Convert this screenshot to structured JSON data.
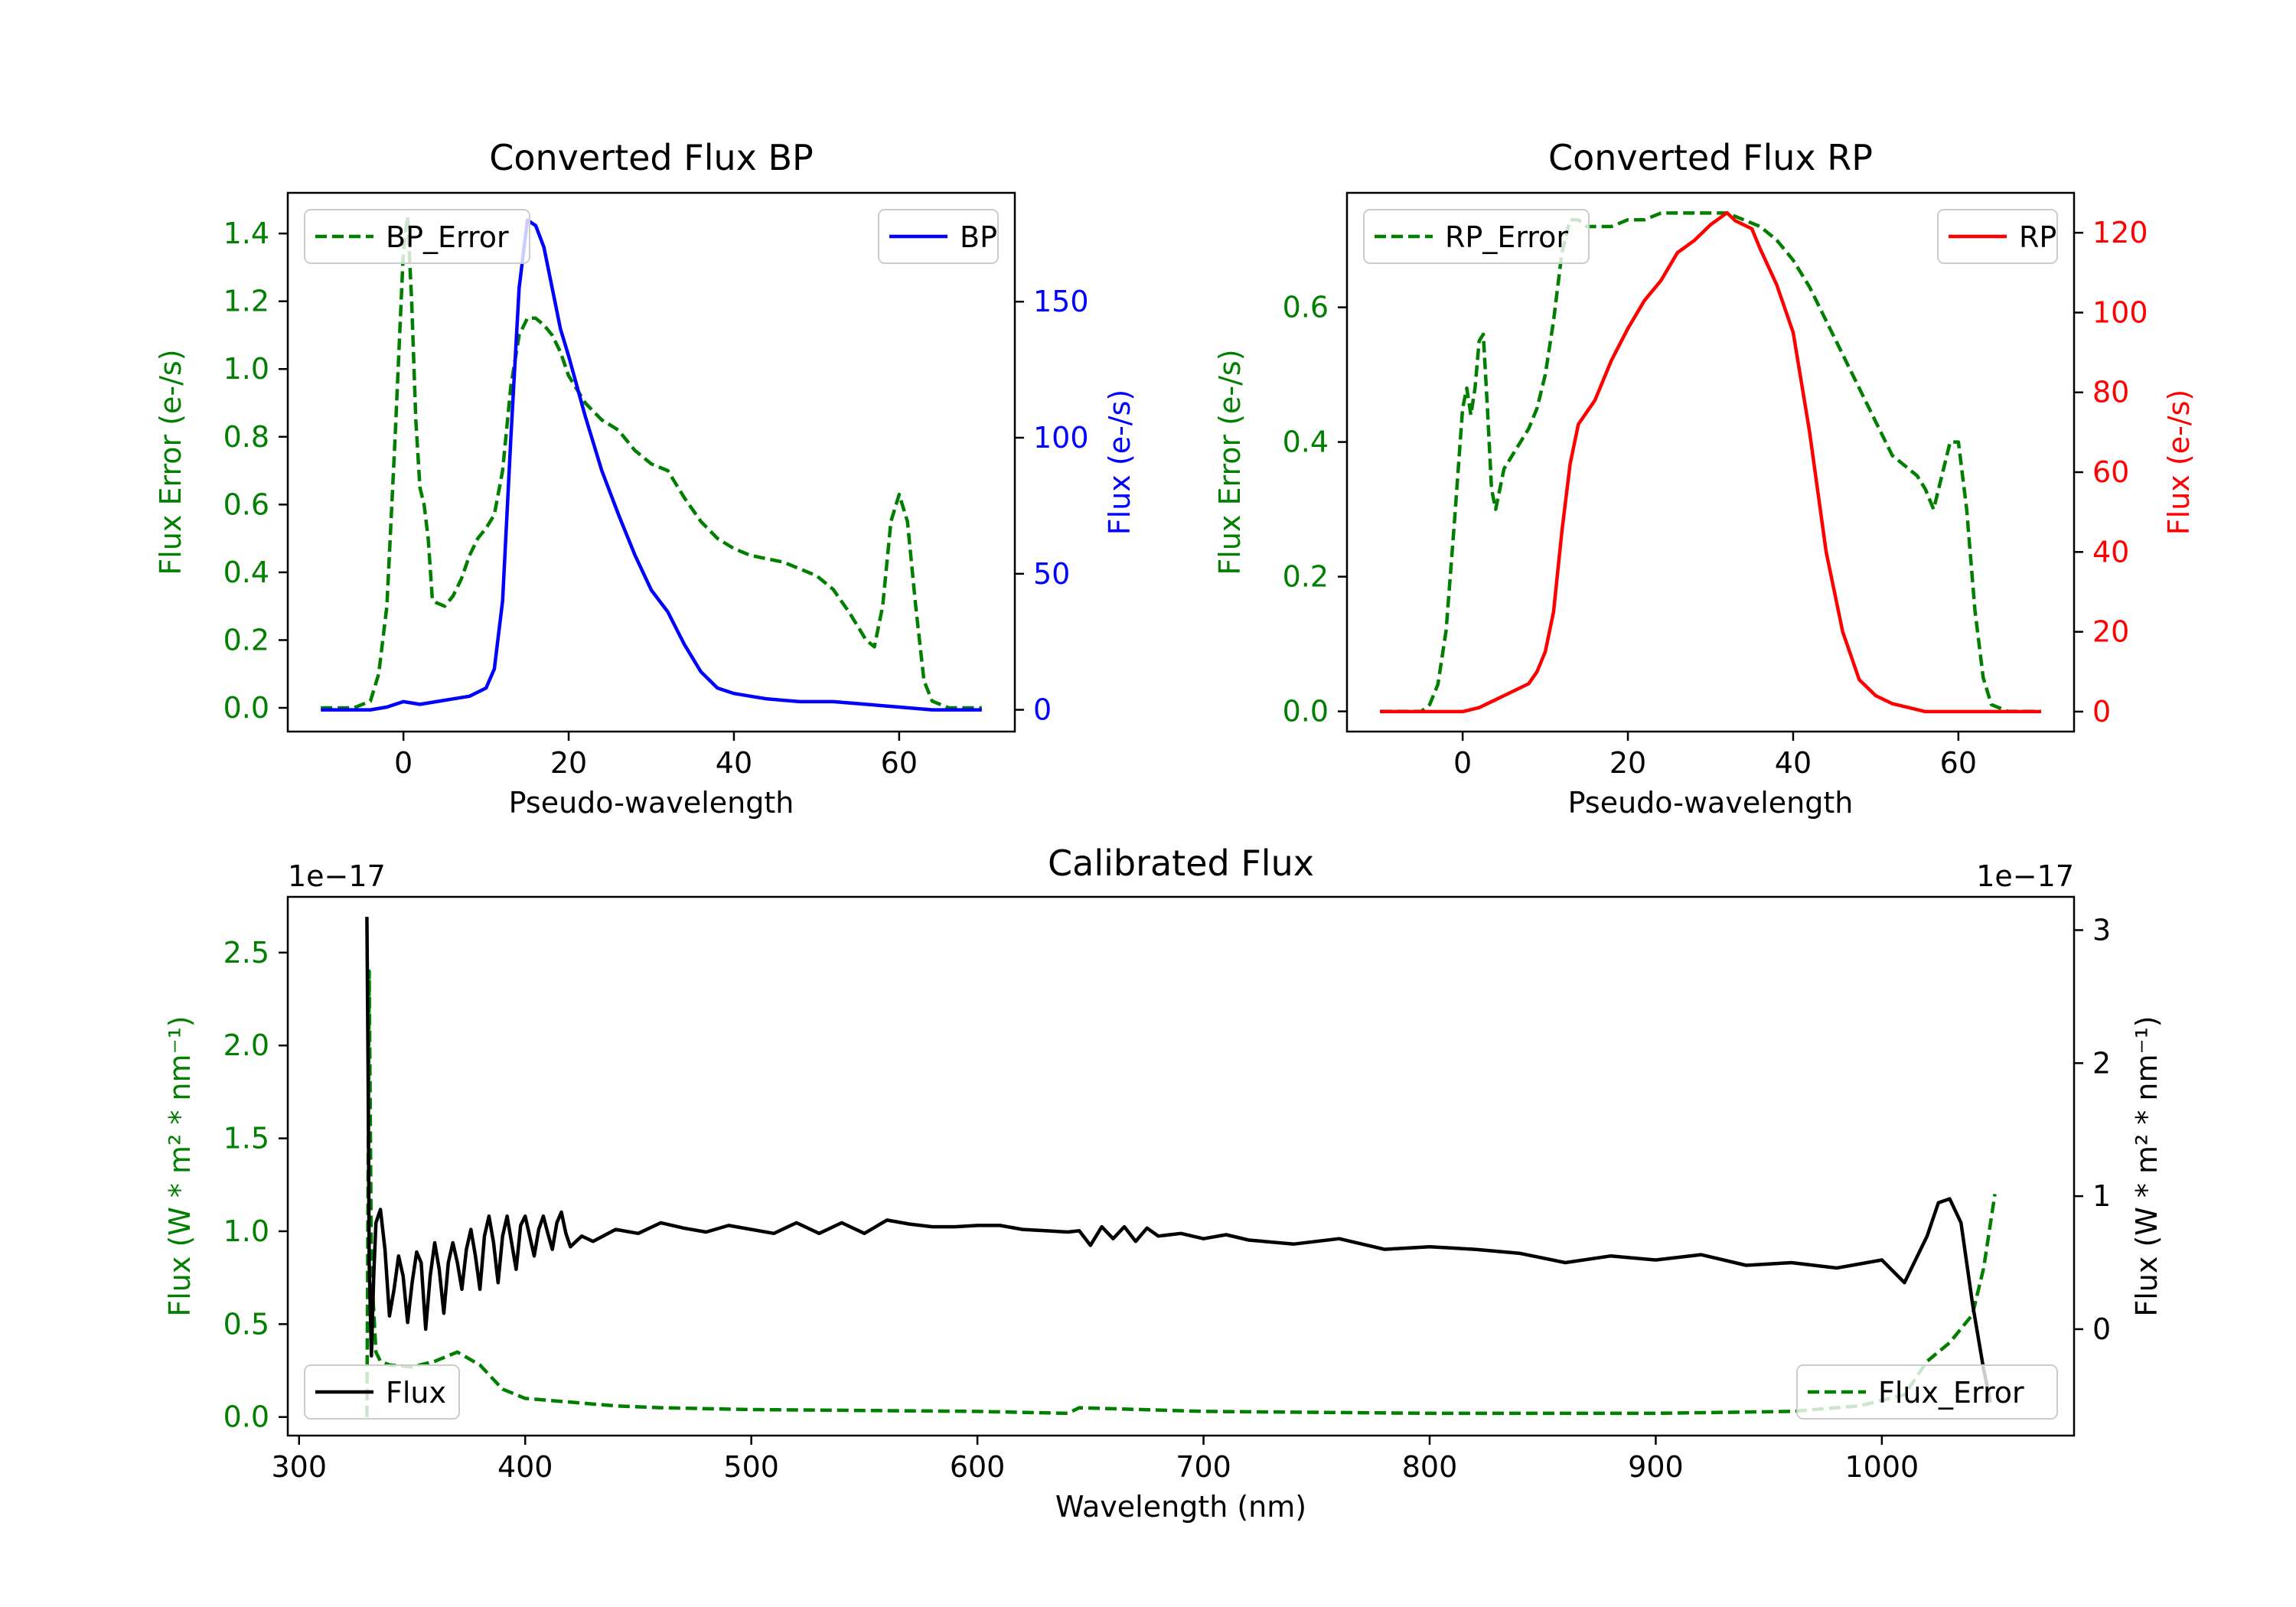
{
  "colors": {
    "green": "#007f00",
    "blue": "#0000ff",
    "red": "#ff0000",
    "black": "#000000"
  },
  "chart_data": [
    {
      "type": "line",
      "title": "Converted Flux BP",
      "xlabel": "Pseudo-wavelength",
      "xlim": [
        -14,
        74
      ],
      "xticks": [
        0,
        20,
        40,
        60
      ],
      "left_axis": {
        "label": "Flux Error (e-/s)",
        "color": "green",
        "ylim": [
          -0.07,
          1.52
        ],
        "ticks": [
          0.0,
          0.2,
          0.4,
          0.6,
          0.8,
          1.0,
          1.2,
          1.4
        ],
        "decimals": 1
      },
      "right_axis": {
        "label": "Flux (e-/s)",
        "color": "blue",
        "ylim": [
          -8,
          190
        ],
        "ticks": [
          0,
          50,
          100,
          150
        ],
        "decimals": 0
      },
      "series": [
        {
          "name": "BP_Error",
          "axis": "left",
          "style": "dashed",
          "color": "green",
          "x": [
            -10,
            -6,
            -4,
            -3,
            -2,
            -1,
            0,
            0.5,
            1,
            1.5,
            2,
            2.5,
            3,
            3.5,
            4,
            5,
            6,
            7,
            8,
            9,
            10,
            11,
            12,
            13,
            14,
            15,
            16,
            17,
            18,
            19,
            20,
            22,
            24,
            26,
            28,
            30,
            32,
            34,
            36,
            38,
            40,
            42,
            44,
            46,
            48,
            50,
            52,
            54,
            55,
            56,
            57,
            58,
            59,
            60,
            61,
            62,
            63,
            64,
            66,
            70
          ],
          "y": [
            0.0,
            0.0,
            0.02,
            0.1,
            0.3,
            0.8,
            1.35,
            1.45,
            1.2,
            0.85,
            0.65,
            0.6,
            0.5,
            0.32,
            0.31,
            0.3,
            0.33,
            0.38,
            0.45,
            0.5,
            0.53,
            0.57,
            0.7,
            0.95,
            1.1,
            1.15,
            1.15,
            1.13,
            1.1,
            1.05,
            0.98,
            0.9,
            0.85,
            0.82,
            0.76,
            0.72,
            0.7,
            0.62,
            0.55,
            0.5,
            0.47,
            0.45,
            0.44,
            0.43,
            0.41,
            0.39,
            0.35,
            0.28,
            0.24,
            0.2,
            0.18,
            0.3,
            0.55,
            0.63,
            0.55,
            0.3,
            0.08,
            0.02,
            0.0,
            0.0
          ]
        },
        {
          "name": "BP",
          "axis": "right",
          "style": "solid",
          "color": "blue",
          "x": [
            -10,
            -4,
            -2,
            0,
            2,
            4,
            6,
            8,
            10,
            11,
            12,
            13,
            14,
            15,
            16,
            17,
            18,
            19,
            20,
            22,
            24,
            26,
            28,
            30,
            32,
            34,
            36,
            38,
            40,
            42,
            44,
            48,
            52,
            56,
            60,
            64,
            70
          ],
          "y": [
            0,
            0,
            1,
            3,
            2,
            3,
            4,
            5,
            8,
            15,
            40,
            100,
            155,
            180,
            178,
            170,
            155,
            140,
            130,
            108,
            88,
            72,
            57,
            44,
            36,
            24,
            14,
            8,
            6,
            5,
            4,
            3,
            3,
            2,
            1,
            0,
            0
          ]
        }
      ],
      "legend": [
        {
          "label": "BP_Error",
          "position": "upper-left"
        },
        {
          "label": "BP",
          "position": "upper-right"
        }
      ]
    },
    {
      "type": "line",
      "title": "Converted Flux RP",
      "xlabel": "Pseudo-wavelength",
      "xlim": [
        -14,
        74
      ],
      "xticks": [
        0,
        20,
        40,
        60
      ],
      "left_axis": {
        "label": "Flux Error (e-/s)",
        "color": "green",
        "ylim": [
          -0.03,
          0.77
        ],
        "ticks": [
          0.0,
          0.2,
          0.4,
          0.6
        ],
        "decimals": 1
      },
      "right_axis": {
        "label": "Flux (e-/s)",
        "color": "red",
        "ylim": [
          -5,
          130
        ],
        "ticks": [
          0,
          20,
          40,
          60,
          80,
          100,
          120
        ],
        "decimals": 0
      },
      "series": [
        {
          "name": "RP_Error",
          "axis": "left",
          "style": "dashed",
          "color": "green",
          "x": [
            -10,
            -5,
            -4,
            -3,
            -2,
            -1,
            0,
            0.5,
            1,
            1.5,
            2,
            2.5,
            3,
            3.5,
            4,
            5,
            6,
            7,
            8,
            9,
            10,
            11,
            12,
            13,
            14,
            15,
            16,
            18,
            20,
            22,
            24,
            26,
            28,
            30,
            32,
            34,
            36,
            38,
            40,
            42,
            44,
            46,
            48,
            50,
            52,
            54,
            55,
            56,
            57,
            58,
            59,
            60,
            61,
            62,
            63,
            64,
            66,
            70
          ],
          "y": [
            0.0,
            0.0,
            0.01,
            0.04,
            0.12,
            0.28,
            0.45,
            0.48,
            0.44,
            0.48,
            0.55,
            0.56,
            0.45,
            0.33,
            0.3,
            0.36,
            0.38,
            0.4,
            0.42,
            0.45,
            0.5,
            0.58,
            0.68,
            0.73,
            0.73,
            0.72,
            0.72,
            0.72,
            0.73,
            0.73,
            0.74,
            0.74,
            0.74,
            0.74,
            0.74,
            0.73,
            0.72,
            0.7,
            0.67,
            0.63,
            0.58,
            0.53,
            0.48,
            0.43,
            0.38,
            0.36,
            0.35,
            0.33,
            0.3,
            0.35,
            0.4,
            0.4,
            0.3,
            0.15,
            0.05,
            0.01,
            0.0,
            0.0
          ]
        },
        {
          "name": "RP",
          "axis": "right",
          "style": "solid",
          "color": "red",
          "x": [
            -10,
            -4,
            0,
            2,
            4,
            6,
            8,
            9,
            10,
            11,
            12,
            13,
            14,
            15,
            16,
            18,
            20,
            22,
            24,
            26,
            28,
            30,
            32,
            33,
            34,
            35,
            36,
            38,
            40,
            42,
            44,
            46,
            48,
            50,
            52,
            54,
            56,
            60,
            64,
            70
          ],
          "y": [
            0,
            0,
            0,
            1,
            3,
            5,
            7,
            10,
            15,
            25,
            45,
            62,
            72,
            75,
            78,
            88,
            96,
            103,
            108,
            115,
            118,
            122,
            125,
            123,
            122,
            121,
            116,
            107,
            95,
            70,
            40,
            20,
            8,
            4,
            2,
            1,
            0,
            0,
            0,
            0
          ]
        }
      ],
      "legend": [
        {
          "label": "RP_Error",
          "position": "upper-left"
        },
        {
          "label": "RP",
          "position": "upper-right"
        }
      ]
    },
    {
      "type": "line",
      "title": "Calibrated Flux",
      "xlabel": "Wavelength (nm)",
      "xlim": [
        295,
        1085
      ],
      "xticks": [
        300,
        400,
        500,
        600,
        700,
        800,
        900,
        1000
      ],
      "left_axis": {
        "label": "Flux (W * m² * nm⁻¹)",
        "color": "green",
        "ylim": [
          -0.1,
          2.8
        ],
        "ticks": [
          0.0,
          0.5,
          1.0,
          1.5,
          2.0,
          2.5
        ],
        "decimals": 1,
        "offset": "1e−17"
      },
      "right_axis": {
        "label": "Flux (W * m² * nm⁻¹)",
        "color": "black",
        "ylim": [
          -0.8,
          3.25
        ],
        "ticks": [
          0,
          1,
          2,
          3
        ],
        "decimals": 0,
        "offset": "1e−17"
      },
      "series": [
        {
          "name": "Flux_Error",
          "axis": "left",
          "style": "dashed",
          "color": "green",
          "x": [
            330,
            331,
            332,
            334,
            336,
            340,
            350,
            360,
            370,
            380,
            390,
            400,
            420,
            440,
            460,
            500,
            550,
            600,
            640,
            645,
            700,
            800,
            900,
            960,
            990,
            1010,
            1020,
            1030,
            1040,
            1045,
            1050
          ],
          "y": [
            0.0,
            2.4,
            0.8,
            0.35,
            0.3,
            0.28,
            0.27,
            0.3,
            0.35,
            0.28,
            0.15,
            0.1,
            0.08,
            0.06,
            0.05,
            0.04,
            0.035,
            0.03,
            0.02,
            0.05,
            0.03,
            0.02,
            0.02,
            0.03,
            0.06,
            0.12,
            0.3,
            0.4,
            0.55,
            0.8,
            1.2
          ]
        },
        {
          "name": "Flux",
          "axis": "right",
          "style": "solid",
          "color": "black",
          "x": [
            330,
            330.5,
            331,
            332,
            333,
            334,
            336,
            338,
            340,
            342,
            344,
            346,
            348,
            350,
            352,
            354,
            356,
            358,
            360,
            362,
            364,
            366,
            368,
            370,
            372,
            374,
            376,
            378,
            380,
            382,
            384,
            386,
            388,
            390,
            392,
            394,
            396,
            398,
            400,
            402,
            404,
            406,
            408,
            410,
            412,
            414,
            416,
            418,
            420,
            425,
            430,
            440,
            450,
            460,
            470,
            480,
            490,
            500,
            510,
            520,
            530,
            540,
            550,
            560,
            570,
            580,
            590,
            600,
            610,
            620,
            630,
            640,
            645,
            650,
            655,
            660,
            665,
            670,
            675,
            680,
            690,
            700,
            710,
            720,
            740,
            760,
            780,
            800,
            820,
            840,
            860,
            880,
            900,
            920,
            940,
            960,
            980,
            1000,
            1010,
            1020,
            1025,
            1030,
            1035,
            1040,
            1045,
            1048
          ],
          "y": [
            3.1,
            2.0,
            0.5,
            -0.2,
            0.4,
            0.8,
            0.9,
            0.6,
            0.1,
            0.3,
            0.55,
            0.4,
            0.05,
            0.35,
            0.58,
            0.5,
            0.0,
            0.4,
            0.65,
            0.45,
            0.12,
            0.5,
            0.65,
            0.5,
            0.3,
            0.6,
            0.75,
            0.55,
            0.3,
            0.7,
            0.85,
            0.65,
            0.35,
            0.7,
            0.85,
            0.65,
            0.45,
            0.78,
            0.85,
            0.7,
            0.55,
            0.75,
            0.85,
            0.72,
            0.6,
            0.8,
            0.88,
            0.72,
            0.62,
            0.7,
            0.66,
            0.75,
            0.72,
            0.8,
            0.76,
            0.73,
            0.78,
            0.75,
            0.72,
            0.8,
            0.72,
            0.8,
            0.72,
            0.82,
            0.79,
            0.77,
            0.77,
            0.78,
            0.78,
            0.75,
            0.74,
            0.73,
            0.74,
            0.63,
            0.77,
            0.68,
            0.77,
            0.66,
            0.76,
            0.7,
            0.72,
            0.68,
            0.71,
            0.67,
            0.64,
            0.68,
            0.6,
            0.62,
            0.6,
            0.57,
            0.5,
            0.55,
            0.52,
            0.56,
            0.48,
            0.5,
            0.46,
            0.52,
            0.35,
            0.7,
            0.95,
            0.98,
            0.8,
            0.2,
            -0.3,
            -0.55
          ]
        }
      ],
      "legend": [
        {
          "label": "Flux",
          "position": "lower-left"
        },
        {
          "label": "Flux_Error",
          "position": "lower-right"
        }
      ]
    }
  ]
}
